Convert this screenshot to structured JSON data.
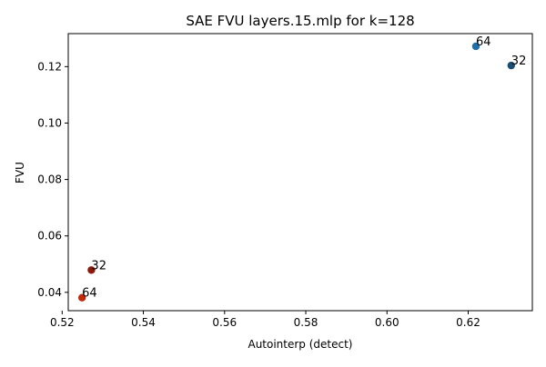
{
  "chart_data": {
    "type": "scatter",
    "title": "SAE FVU layers.15.mlp for k=128",
    "xlabel": "Autointerp (detect)",
    "ylabel": "FVU",
    "xlim": [
      0.5215,
      0.6358
    ],
    "ylim": [
      0.0335,
      0.1317
    ],
    "x_ticks": [
      0.52,
      0.54,
      0.56,
      0.58,
      0.6,
      0.62
    ],
    "x_tick_labels": [
      "0.52",
      "0.54",
      "0.56",
      "0.58",
      "0.60",
      "0.62"
    ],
    "y_ticks": [
      0.04,
      0.06,
      0.08,
      0.1,
      0.12
    ],
    "y_tick_labels": [
      "0.04",
      "0.06",
      "0.08",
      "0.10",
      "0.12"
    ],
    "grid": false,
    "legend": "none",
    "points": [
      {
        "x": 0.6219,
        "y": 0.1272,
        "label": "64",
        "color": "#1f6fa8"
      },
      {
        "x": 0.6306,
        "y": 0.1204,
        "label": "32",
        "color": "#184e74"
      },
      {
        "x": 0.5272,
        "y": 0.0479,
        "label": "32",
        "color": "#8b1a0a"
      },
      {
        "x": 0.5249,
        "y": 0.0381,
        "label": "64",
        "color": "#c0290a"
      }
    ]
  }
}
